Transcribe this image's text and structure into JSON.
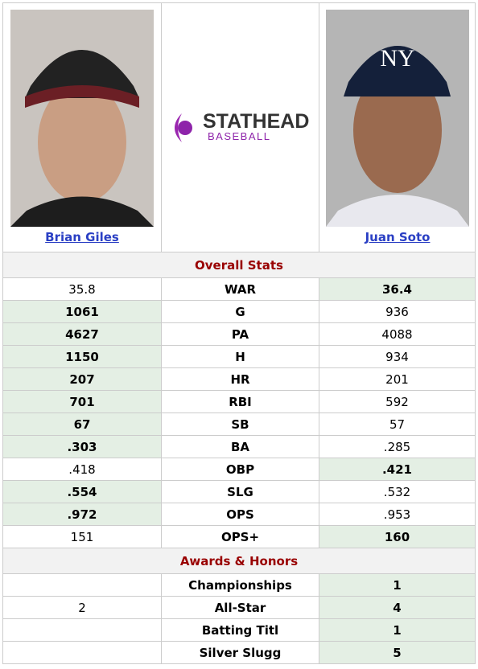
{
  "players": [
    {
      "name": "Brian Giles"
    },
    {
      "name": "Juan Soto"
    }
  ],
  "logo": {
    "brand": "STATHEAD",
    "sub": "BASEBALL"
  },
  "sections": [
    {
      "title": "Overall Stats",
      "rows": [
        {
          "stat": "WAR",
          "left": "35.8",
          "right": "36.4",
          "leader": "right"
        },
        {
          "stat": "G",
          "left": "1061",
          "right": "936",
          "leader": "left"
        },
        {
          "stat": "PA",
          "left": "4627",
          "right": "4088",
          "leader": "left"
        },
        {
          "stat": "H",
          "left": "1150",
          "right": "934",
          "leader": "left"
        },
        {
          "stat": "HR",
          "left": "207",
          "right": "201",
          "leader": "left"
        },
        {
          "stat": "RBI",
          "left": "701",
          "right": "592",
          "leader": "left"
        },
        {
          "stat": "SB",
          "left": "67",
          "right": "57",
          "leader": "left"
        },
        {
          "stat": "BA",
          "left": ".303",
          "right": ".285",
          "leader": "left"
        },
        {
          "stat": "OBP",
          "left": ".418",
          "right": ".421",
          "leader": "right"
        },
        {
          "stat": "SLG",
          "left": ".554",
          "right": ".532",
          "leader": "left"
        },
        {
          "stat": "OPS",
          "left": ".972",
          "right": ".953",
          "leader": "left"
        },
        {
          "stat": "OPS+",
          "left": "151",
          "right": "160",
          "leader": "right"
        }
      ]
    },
    {
      "title": "Awards & Honors",
      "rows": [
        {
          "stat": "Championships",
          "left": null,
          "right": "1",
          "leader": "right"
        },
        {
          "stat": "All-Star",
          "left": "2",
          "right": "4",
          "leader": "right"
        },
        {
          "stat": "Batting Titl",
          "left": null,
          "right": "1",
          "leader": "right"
        },
        {
          "stat": "Silver Slugg",
          "left": null,
          "right": "5",
          "leader": "right"
        }
      ]
    }
  ]
}
